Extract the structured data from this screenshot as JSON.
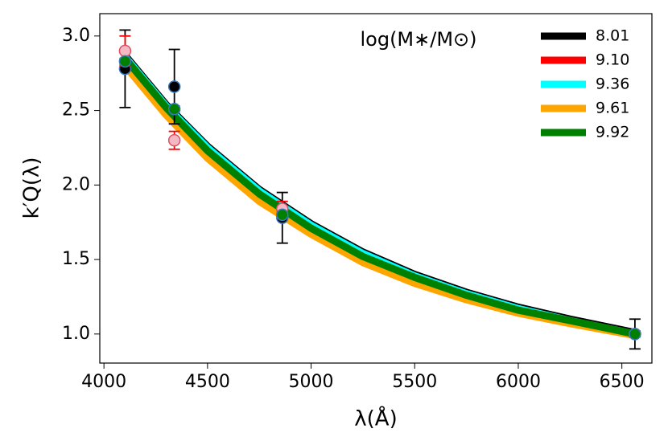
{
  "chart_data": {
    "type": "line",
    "xlabel": "λ(Å)",
    "ylabel": "k′Q(λ)",
    "legend_title": "log(M∗/M⊙)",
    "legend_position": "upper right",
    "xlim": [
      3980,
      6645
    ],
    "ylim": [
      0.805,
      3.15
    ],
    "xticks": [
      4000,
      4500,
      5000,
      5500,
      6000,
      6500
    ],
    "yticks": [
      {
        "value": 1,
        "label": "1.0"
      },
      1.5,
      {
        "value": 2,
        "label": "2.0"
      },
      2.5,
      {
        "value": 3,
        "label": "3.0"
      }
    ],
    "x": [
      4102,
      4300,
      4500,
      4750,
      5000,
      5250,
      5500,
      5750,
      6000,
      6250,
      6563
    ],
    "point_x": [
      4102,
      4340,
      4861,
      6563
    ],
    "series": [
      {
        "name": "8.01",
        "color": "#000000",
        "values": [
          2.87,
          2.54,
          2.26,
          1.97,
          1.74,
          1.55,
          1.4,
          1.28,
          1.18,
          1.1,
          1.01
        ],
        "marker_color": "#000000",
        "point_values": [
          2.78,
          2.66,
          1.78,
          1.0
        ],
        "point_errors": [
          0.26,
          0.25,
          0.17,
          0.1
        ]
      },
      {
        "name": "9.10",
        "color": "#ff0000",
        "values": [
          2.86,
          2.53,
          2.24,
          1.95,
          1.72,
          1.53,
          1.39,
          1.27,
          1.17,
          1.09,
          1.0
        ],
        "marker_color": "#f4b8c4",
        "point_values": [
          2.9,
          2.3,
          1.84,
          1.0
        ],
        "point_errors": [
          0.1,
          0.06,
          0.05,
          0.02
        ]
      },
      {
        "name": "9.36",
        "color": "#00ffff",
        "values": [
          2.86,
          2.53,
          2.25,
          1.96,
          1.73,
          1.54,
          1.39,
          1.27,
          1.17,
          1.09,
          1.0
        ]
      },
      {
        "name": "9.61",
        "color": "#ffa500",
        "values": [
          2.8,
          2.47,
          2.18,
          1.89,
          1.67,
          1.48,
          1.34,
          1.23,
          1.14,
          1.07,
          0.99
        ]
      },
      {
        "name": "9.92",
        "color": "#008000",
        "values": [
          2.85,
          2.52,
          2.23,
          1.94,
          1.71,
          1.52,
          1.38,
          1.26,
          1.16,
          1.09,
          1.0
        ],
        "marker_color": "#008000",
        "point_values": [
          2.83,
          2.51,
          1.8,
          1.0
        ],
        "point_errors": [
          0.02,
          0.02,
          0.02,
          0.01
        ]
      }
    ]
  }
}
